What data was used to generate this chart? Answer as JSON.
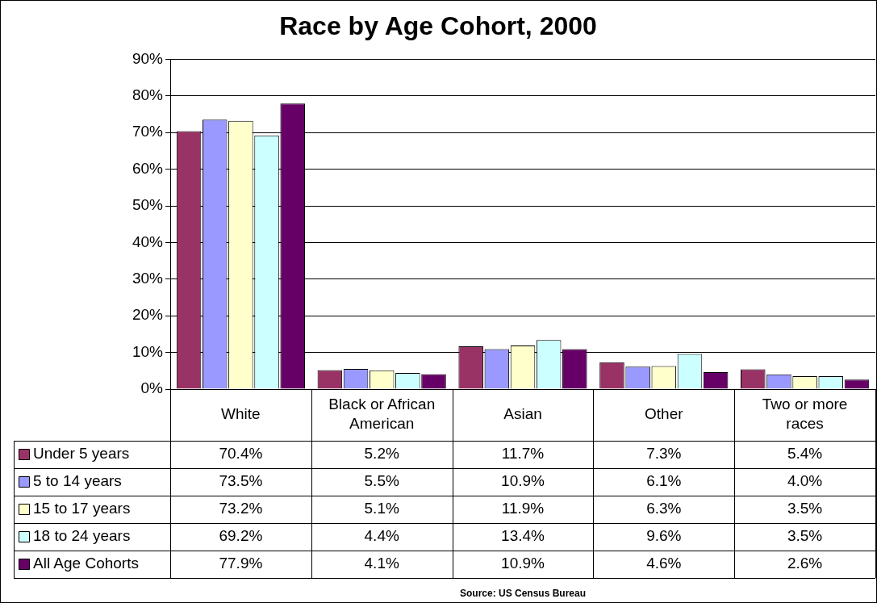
{
  "chart_data": {
    "type": "bar",
    "title": "Race by Age Cohort, 2000",
    "categories": [
      "White",
      "Black or African American",
      "Asian",
      "Other",
      "Two or more races"
    ],
    "series": [
      {
        "name": "Under 5 years",
        "color": "#993366",
        "values": [
          70.4,
          5.2,
          11.7,
          7.3,
          5.4
        ],
        "value_labels": [
          "70.4%",
          "5.2%",
          "11.7%",
          "7.3%",
          "5.4%"
        ]
      },
      {
        "name": "5 to 14 years",
        "color": "#9999ff",
        "values": [
          73.5,
          5.5,
          10.9,
          6.1,
          4.0
        ],
        "value_labels": [
          "73.5%",
          "5.5%",
          "10.9%",
          "6.1%",
          "4.0%"
        ]
      },
      {
        "name": "15 to 17 years",
        "color": "#ffffcc",
        "values": [
          73.2,
          5.1,
          11.9,
          6.3,
          3.5
        ],
        "value_labels": [
          "73.2%",
          "5.1%",
          "11.9%",
          "6.3%",
          "3.5%"
        ]
      },
      {
        "name": "18 to 24 years",
        "color": "#ccffff",
        "values": [
          69.2,
          4.4,
          13.4,
          9.6,
          3.5
        ],
        "value_labels": [
          "69.2%",
          "4.4%",
          "13.4%",
          "9.6%",
          "3.5%"
        ]
      },
      {
        "name": "All Age Cohorts",
        "color": "#660066",
        "values": [
          77.9,
          4.1,
          10.9,
          4.6,
          2.6
        ],
        "value_labels": [
          "77.9%",
          "4.1%",
          "10.9%",
          "4.6%",
          "2.6%"
        ]
      }
    ],
    "ylim": [
      0,
      90
    ],
    "yticks": [
      {
        "value": 0,
        "label": "0%"
      },
      {
        "value": 10,
        "label": "10%"
      },
      {
        "value": 20,
        "label": "20%"
      },
      {
        "value": 30,
        "label": "30%"
      },
      {
        "value": 40,
        "label": "40%"
      },
      {
        "value": 50,
        "label": "50%"
      },
      {
        "value": 60,
        "label": "60%"
      },
      {
        "value": 70,
        "label": "70%"
      },
      {
        "value": 80,
        "label": "80%"
      },
      {
        "value": 90,
        "label": "90%"
      }
    ],
    "grid": "y",
    "legend": "bottom left",
    "annotations": [
      "Source: US Census Bureau"
    ]
  }
}
